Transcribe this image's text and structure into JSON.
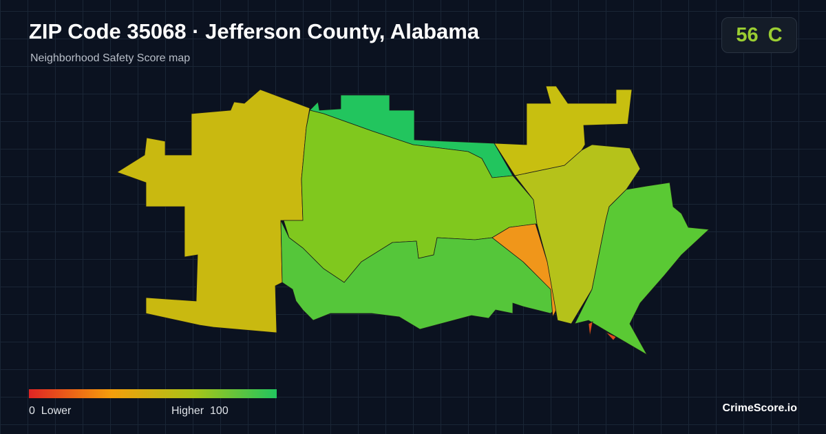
{
  "header": {
    "title": "ZIP Code 35068 · Jefferson County, Alabama",
    "subtitle": "Neighborhood Safety Score map"
  },
  "score": {
    "value": 56,
    "grade": "C"
  },
  "legend": {
    "min": 0,
    "min_label": "Lower",
    "max_label": "Higher",
    "max": 100
  },
  "brand": "CrimeScore.io"
}
